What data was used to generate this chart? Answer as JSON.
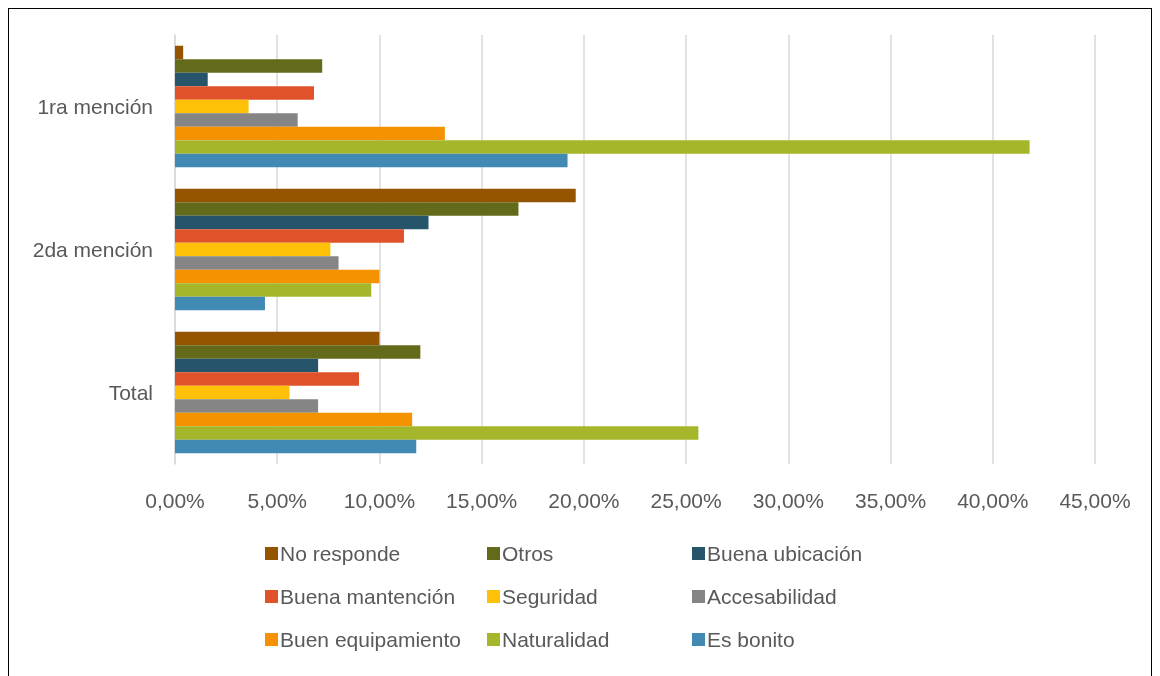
{
  "chart_data": {
    "type": "bar",
    "orientation": "horizontal",
    "categories": [
      "1ra mención",
      "2da mención",
      "Total"
    ],
    "series": [
      {
        "name": "No responde",
        "color": "#945400",
        "values": [
          0.4,
          19.6,
          10.0
        ]
      },
      {
        "name": "Otros",
        "color": "#636b1a",
        "values": [
          7.2,
          16.8,
          12.0
        ]
      },
      {
        "name": "Buena ubicación",
        "color": "#26556b",
        "values": [
          1.6,
          12.4,
          7.0
        ]
      },
      {
        "name": "Buena mantención",
        "color": "#e0532a",
        "values": [
          6.8,
          11.2,
          9.0
        ]
      },
      {
        "name": "Seguridad",
        "color": "#fec108",
        "values": [
          3.6,
          7.6,
          5.6
        ]
      },
      {
        "name": "Accesabilidad",
        "color": "#858585",
        "values": [
          6.0,
          8.0,
          7.0
        ]
      },
      {
        "name": "Buen equipamiento",
        "color": "#f59200",
        "values": [
          13.2,
          10.0,
          11.6
        ]
      },
      {
        "name": "Naturalidad",
        "color": "#a6b62a",
        "values": [
          41.8,
          9.6,
          25.6
        ]
      },
      {
        "name": "Es bonito",
        "color": "#418ab4",
        "values": [
          19.2,
          4.4,
          11.8
        ]
      }
    ],
    "xlim": [
      0,
      45
    ],
    "xticks": [
      {
        "value": 0,
        "label": "0,00%"
      },
      {
        "value": 5,
        "label": "5,00%"
      },
      {
        "value": 10,
        "label": "10,00%"
      },
      {
        "value": 15,
        "label": "15,00%"
      },
      {
        "value": 20,
        "label": "20,00%"
      },
      {
        "value": 25,
        "label": "25,00%"
      },
      {
        "value": 30,
        "label": "30,00%"
      },
      {
        "value": 35,
        "label": "35,00%"
      },
      {
        "value": 40,
        "label": "40,00%"
      },
      {
        "value": 45,
        "label": "45,00%"
      }
    ],
    "grid": "x",
    "legend": "bottom"
  }
}
